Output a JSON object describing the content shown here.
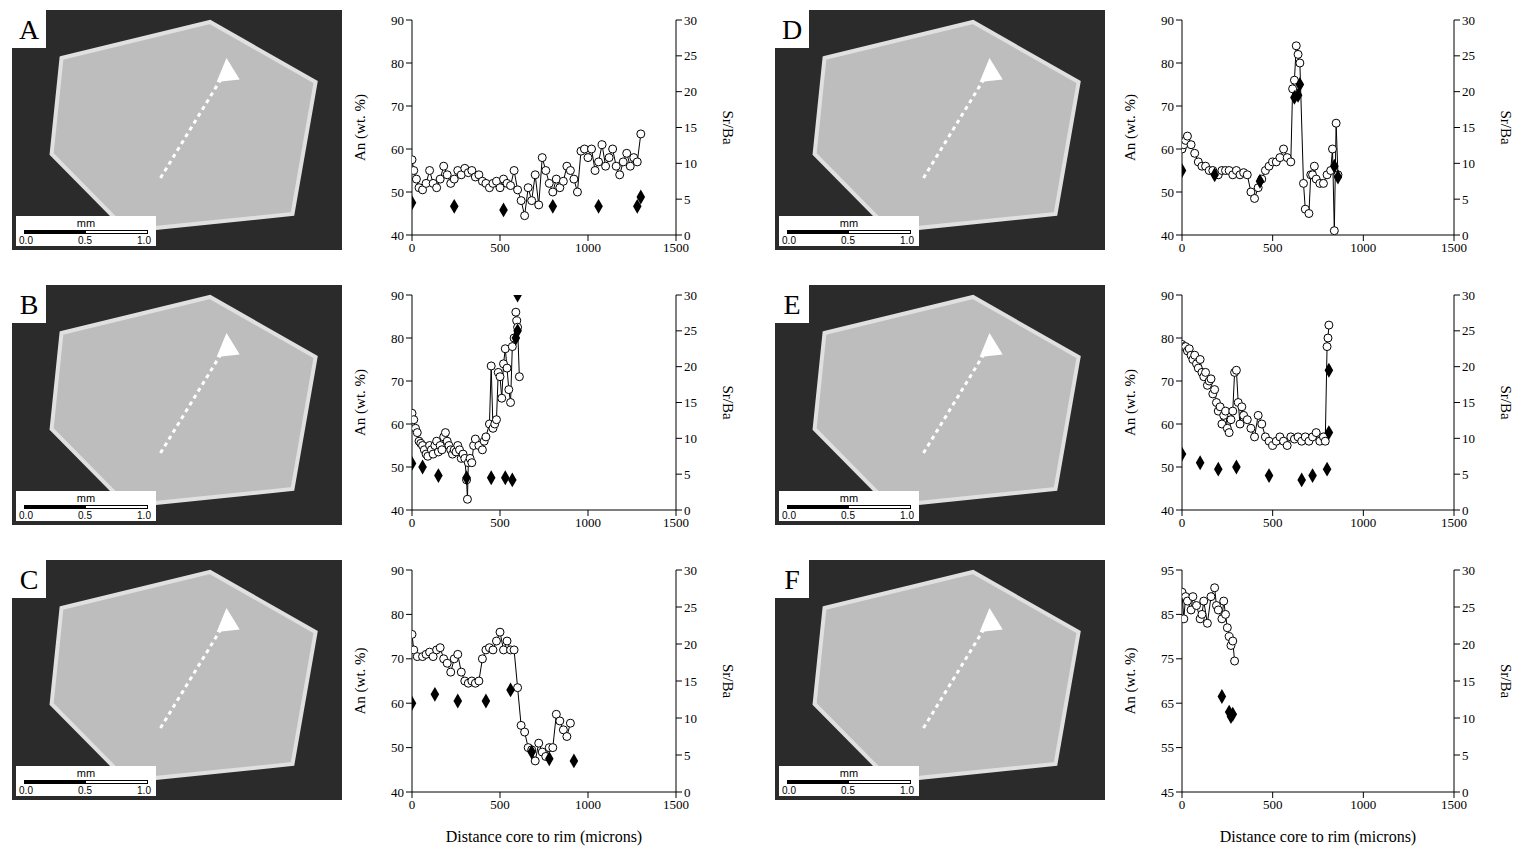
{
  "x_label": "Distance core to rim (microns)",
  "scale_bar": {
    "unit": "mm",
    "labels": [
      "0.0",
      "0.5",
      "1.0"
    ]
  },
  "chart_data": [
    {
      "panel": "A",
      "type": "line",
      "y_label": "An (wt. %)",
      "y2_label": "Sr/Ba",
      "xlim": [
        0,
        1500
      ],
      "xticks": [
        0,
        500,
        1000,
        1500
      ],
      "ylim": [
        40,
        90
      ],
      "yticks": [
        40,
        50,
        60,
        70,
        80,
        90
      ],
      "y2lim": [
        0,
        30
      ],
      "y2ticks": [
        0,
        5,
        10,
        15,
        20,
        25,
        30
      ],
      "series": [
        {
          "type": "line",
          "marker": "circle",
          "line_style": "solid",
          "color": "#000000",
          "x": [
            0,
            10,
            25,
            40,
            60,
            80,
            100,
            120,
            140,
            160,
            180,
            200,
            220,
            240,
            260,
            280,
            300,
            320,
            340,
            360,
            380,
            400,
            420,
            440,
            460,
            480,
            500,
            520,
            540,
            560,
            580,
            600,
            620,
            640,
            660,
            680,
            700,
            720,
            740,
            760,
            780,
            800,
            820,
            840,
            860,
            880,
            900,
            920,
            940,
            960,
            980,
            1000,
            1020,
            1040,
            1060,
            1080,
            1100,
            1120,
            1140,
            1160,
            1180,
            1200,
            1220,
            1240,
            1260,
            1280,
            1300
          ],
          "values": [
            57.5,
            55,
            53,
            51,
            50.5,
            52,
            55,
            52,
            51,
            53,
            56,
            54,
            52,
            53,
            55,
            54,
            55.5,
            54.5,
            55,
            53.5,
            54,
            52.5,
            52,
            51,
            52,
            52.5,
            51,
            53,
            52,
            51.5,
            55,
            50.5,
            48,
            44.5,
            51,
            48,
            54,
            47,
            58,
            55,
            52,
            50,
            53,
            51,
            52.5,
            56,
            55,
            53,
            50,
            59.5,
            60,
            58,
            60,
            55,
            57,
            61,
            56,
            58,
            60,
            56,
            54,
            57,
            59,
            56,
            58,
            57,
            63.5
          ]
        },
        {
          "type": "scatter",
          "marker": "diamond",
          "axis": "y2",
          "color": "#000000",
          "x": [
            0,
            240,
            520,
            800,
            1060,
            1280,
            1300
          ],
          "values": [
            4.5,
            4,
            3.5,
            4,
            4,
            4,
            5.3
          ]
        }
      ]
    },
    {
      "panel": "B",
      "type": "line",
      "y_label": "An (wt. %)",
      "y2_label": "Sr/Ba",
      "xlim": [
        0,
        1500
      ],
      "xticks": [
        0,
        500,
        1000,
        1500
      ],
      "ylim": [
        40,
        90
      ],
      "yticks": [
        40,
        50,
        60,
        70,
        80,
        90
      ],
      "y2lim": [
        0,
        30
      ],
      "y2ticks": [
        0,
        5,
        10,
        15,
        20,
        25,
        30
      ],
      "series": [
        {
          "type": "line",
          "marker": "circle",
          "line_style": "solid",
          "color": "#000000",
          "x": [
            0,
            10,
            20,
            30,
            40,
            50,
            60,
            70,
            80,
            90,
            100,
            110,
            120,
            130,
            140,
            150,
            160,
            170,
            180,
            190,
            200,
            210,
            220,
            230,
            240,
            250,
            260,
            270,
            280,
            290,
            300,
            310,
            315,
            320,
            330,
            340,
            350,
            360,
            380,
            400,
            410,
            420,
            440,
            450,
            460,
            470,
            480,
            490,
            500,
            510,
            520,
            530,
            540,
            550,
            560,
            570,
            580,
            590,
            595,
            600,
            610
          ],
          "values": [
            62.5,
            61,
            59,
            58,
            56,
            55.5,
            55,
            54,
            53,
            52.5,
            55,
            54,
            53,
            55,
            56,
            53.5,
            55,
            54,
            57,
            58,
            56,
            55,
            54,
            53,
            54,
            53.5,
            55,
            54,
            52,
            53,
            52,
            47,
            42.5,
            51,
            52,
            51,
            55,
            56.5,
            55,
            54,
            56,
            57,
            60,
            73.5,
            59,
            60,
            61,
            72,
            71,
            66,
            74,
            77.5,
            73,
            68,
            65,
            78,
            80,
            86,
            84,
            82.5,
            71
          ]
        },
        {
          "type": "scatter",
          "marker": "diamond",
          "axis": "y2",
          "color": "#000000",
          "x": [
            0,
            60,
            150,
            310,
            450,
            530,
            570,
            590,
            600,
            600
          ],
          "values": [
            6.5,
            6,
            4.8,
            4.5,
            4.5,
            4.5,
            4.2,
            24,
            25,
            30
          ]
        }
      ]
    },
    {
      "panel": "C",
      "type": "line",
      "y_label": "An (wt. %)",
      "y2_label": "Sr/Ba",
      "xlim": [
        0,
        1500
      ],
      "xticks": [
        0,
        500,
        1000,
        1500
      ],
      "ylim": [
        40,
        90
      ],
      "yticks": [
        40,
        50,
        60,
        70,
        80,
        90
      ],
      "y2lim": [
        0,
        30
      ],
      "y2ticks": [
        0,
        5,
        10,
        15,
        20,
        25,
        30
      ],
      "series": [
        {
          "type": "line",
          "marker": "circle",
          "line_style": "solid",
          "color": "#000000",
          "x": [
            0,
            10,
            30,
            60,
            80,
            100,
            120,
            140,
            160,
            180,
            200,
            220,
            240,
            260,
            280,
            300,
            320,
            340,
            360,
            380,
            400,
            420,
            440,
            460,
            480,
            500,
            520,
            540,
            560,
            580,
            600,
            620,
            640,
            660,
            680,
            700,
            720,
            740,
            760,
            780,
            800,
            820,
            840,
            860,
            880,
            900
          ],
          "values": [
            75.5,
            72,
            70.5,
            70.5,
            71,
            71.5,
            70.5,
            72,
            72.5,
            70,
            69,
            67,
            70,
            71,
            67,
            65,
            64.5,
            65,
            64.5,
            65,
            70,
            72,
            72.5,
            72,
            74,
            76,
            72,
            74,
            72,
            72,
            63.5,
            55,
            53.5,
            50,
            49.5,
            47,
            51,
            49,
            48,
            50,
            50,
            57.5,
            56,
            54,
            52.5,
            55.5
          ]
        },
        {
          "type": "scatter",
          "marker": "diamond",
          "axis": "y2",
          "color": "#000000",
          "x": [
            0,
            130,
            260,
            420,
            560,
            680,
            780,
            920
          ],
          "values": [
            12,
            13.2,
            12.3,
            12.3,
            13.8,
            5.4,
            4.5,
            4.2
          ]
        }
      ]
    },
    {
      "panel": "D",
      "type": "line",
      "y_label": "An (wt. %)",
      "y2_label": "Sr/Ba",
      "xlim": [
        0,
        1500
      ],
      "xticks": [
        0,
        500,
        1000,
        1500
      ],
      "ylim": [
        40,
        90
      ],
      "yticks": [
        40,
        50,
        60,
        70,
        80,
        90
      ],
      "y2lim": [
        0,
        30
      ],
      "y2ticks": [
        0,
        5,
        10,
        15,
        20,
        25,
        30
      ],
      "series": [
        {
          "type": "line",
          "marker": "circle",
          "line_style": "solid",
          "color": "#000000",
          "x": [
            0,
            10,
            20,
            30,
            50,
            70,
            90,
            110,
            130,
            150,
            170,
            200,
            220,
            240,
            260,
            280,
            300,
            320,
            340,
            360,
            380,
            400,
            420,
            440,
            460,
            480,
            500,
            520,
            540,
            560,
            580,
            600,
            610,
            620,
            630,
            640,
            650,
            670,
            680,
            700,
            710,
            720,
            730,
            740,
            760,
            780,
            800,
            820,
            830,
            840,
            850,
            860
          ],
          "values": [
            60,
            61,
            62,
            63,
            61,
            59,
            57,
            56,
            56,
            55,
            55,
            54,
            55,
            55,
            55,
            54,
            55,
            54,
            54.5,
            54,
            50,
            48.5,
            51,
            53,
            55,
            56,
            57,
            57,
            58,
            60,
            58,
            57,
            74,
            76,
            84,
            82,
            80,
            52,
            46,
            45,
            54,
            54,
            56,
            53,
            52,
            52,
            54,
            55,
            60,
            41,
            66,
            54
          ]
        },
        {
          "type": "scatter",
          "marker": "diamond",
          "axis": "y2",
          "color": "#000000",
          "x": [
            0,
            180,
            430,
            620,
            640,
            650,
            840,
            860
          ],
          "values": [
            9,
            8.4,
            7.5,
            19.2,
            19.5,
            21,
            9.6,
            8.1
          ]
        }
      ]
    },
    {
      "panel": "E",
      "type": "line",
      "y_label": "An (wt. %)",
      "y2_label": "Sr/Ba",
      "xlim": [
        0,
        1500
      ],
      "xticks": [
        0,
        500,
        1000,
        1500
      ],
      "ylim": [
        40,
        90
      ],
      "yticks": [
        40,
        50,
        60,
        70,
        80,
        90
      ],
      "y2lim": [
        0,
        30
      ],
      "y2ticks": [
        0,
        5,
        10,
        15,
        20,
        25,
        30
      ],
      "series": [
        {
          "type": "line",
          "marker": "circle",
          "line_style": "solid",
          "color": "#000000",
          "x": [
            0,
            10,
            20,
            30,
            40,
            50,
            60,
            70,
            80,
            90,
            100,
            110,
            120,
            130,
            140,
            150,
            160,
            170,
            180,
            190,
            200,
            210,
            220,
            230,
            240,
            250,
            260,
            270,
            280,
            290,
            300,
            310,
            320,
            330,
            340,
            360,
            380,
            400,
            420,
            440,
            460,
            480,
            500,
            520,
            540,
            560,
            580,
            600,
            620,
            640,
            660,
            680,
            700,
            720,
            740,
            760,
            780,
            790,
            800,
            805,
            810
          ],
          "values": [
            78.5,
            78,
            78,
            77,
            77.5,
            76,
            75,
            76,
            74,
            73,
            75,
            72,
            71,
            72,
            69,
            70,
            70.5,
            67,
            68,
            65,
            63,
            64,
            60,
            62,
            63,
            59,
            58,
            61,
            63,
            72,
            72.5,
            65,
            60,
            64,
            62,
            61,
            59,
            57,
            62,
            60,
            57,
            56,
            55,
            56,
            57,
            56,
            55,
            57,
            56.5,
            57,
            56,
            57,
            56,
            57,
            58,
            56,
            57,
            56,
            78,
            80,
            83
          ]
        },
        {
          "type": "scatter",
          "marker": "diamond",
          "axis": "y2",
          "color": "#000000",
          "x": [
            0,
            100,
            200,
            300,
            480,
            660,
            720,
            800,
            810,
            810
          ],
          "values": [
            7.8,
            6.6,
            5.7,
            6,
            4.8,
            4.2,
            4.8,
            5.7,
            19.5,
            10.8
          ]
        }
      ]
    },
    {
      "panel": "F",
      "type": "line",
      "y_label": "An (wt. %)",
      "y2_label": "Sr/Ba",
      "xlim": [
        0,
        1500
      ],
      "xticks": [
        0,
        500,
        1000,
        1500
      ],
      "ylim": [
        45,
        95
      ],
      "yticks": [
        45,
        55,
        65,
        75,
        85,
        95
      ],
      "y2lim": [
        0,
        30
      ],
      "y2ticks": [
        0,
        5,
        10,
        15,
        20,
        25,
        30
      ],
      "series": [
        {
          "type": "line",
          "marker": "circle",
          "line_style": "solid",
          "color": "#000000",
          "x": [
            0,
            10,
            20,
            30,
            50,
            60,
            80,
            100,
            110,
            120,
            140,
            160,
            180,
            190,
            200,
            220,
            230,
            240,
            250,
            260,
            270,
            280,
            290
          ],
          "values": [
            90,
            84,
            89,
            88,
            86,
            89,
            87,
            84,
            85,
            88,
            83,
            89,
            91,
            87,
            86,
            84,
            88,
            85,
            82,
            80,
            78,
            79,
            74.5
          ]
        },
        {
          "type": "scatter",
          "marker": "diamond",
          "axis": "y2",
          "color": "#000000",
          "x": [
            220,
            260,
            270,
            280
          ],
          "values": [
            12.9,
            10.8,
            10.2,
            10.5
          ]
        }
      ]
    }
  ]
}
